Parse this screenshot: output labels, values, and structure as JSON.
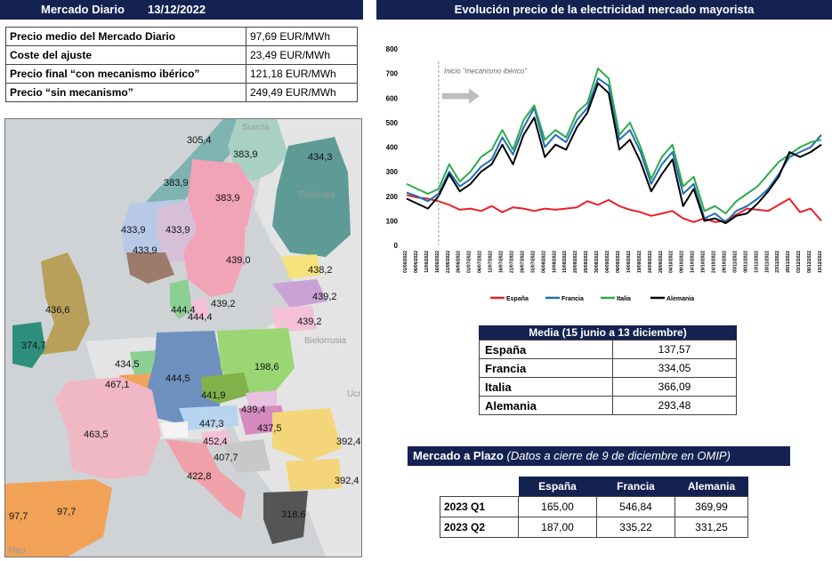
{
  "left_header": {
    "title": "Mercado Diario",
    "date": "13/12/2022"
  },
  "right_header": {
    "title": "Evolución precio de la electricidad mercado mayorista"
  },
  "price_table": [
    {
      "label": "Precio medio del Mercado Diario",
      "value": "97,69 EUR/MWh"
    },
    {
      "label": "Coste del ajuste",
      "value": "23,49 EUR/MWh"
    },
    {
      "label": "Precio final “con mecanismo ibérico”",
      "value": "121,18 EUR/MWh"
    },
    {
      "label": "Precio “sin mecanismo”",
      "value": "249,49 EUR/MWh"
    }
  ],
  "map": {
    "credit": "Map",
    "background_labels": [
      "Suecia",
      "Finlandia",
      "Bielorrusia",
      "Ucr"
    ],
    "colors": {
      "sea": "#cfcfcf",
      "land": "#e3e3e3"
    },
    "price_labels": [
      "305,4",
      "383,9",
      "434,3",
      "383,9",
      "383,9",
      "433,9",
      "433,9",
      "433,9",
      "439,0",
      "438,2",
      "439,2",
      "439,2",
      "436,6",
      "444,4",
      "444,4",
      "439,2",
      "374,7",
      "434,5",
      "198,6",
      "444,5",
      "467,1",
      "441,9",
      "439,4",
      "447,3",
      "437,5",
      "463,5",
      "452,4",
      "392,4",
      "407,7",
      "422,8",
      "392,4",
      "97,7",
      "97,7",
      "318,6"
    ]
  },
  "chart_data": {
    "type": "line",
    "title": "Evolución precio de la electricidad mercado mayorista",
    "ylim": [
      0,
      800
    ],
    "yticks": [
      0,
      100,
      200,
      300,
      400,
      500,
      600,
      700,
      800
    ],
    "annotation": "Inicio \"mecanismo ibérico\"",
    "annotation_date": "16/06/2022",
    "x": [
      "01/06/2022",
      "06/06/2022",
      "11/06/2022",
      "16/06/2022",
      "21/06/2022",
      "26/06/2022",
      "01/07/2022",
      "06/07/2022",
      "11/07/2022",
      "16/07/2022",
      "21/07/2022",
      "26/07/2022",
      "31/07/2022",
      "05/08/2022",
      "10/08/2022",
      "15/08/2022",
      "20/08/2022",
      "25/08/2022",
      "30/08/2022",
      "04/09/2022",
      "09/09/2022",
      "14/09/2022",
      "19/09/2022",
      "24/09/2022",
      "29/09/2022",
      "04/10/2022",
      "09/10/2022",
      "14/10/2022",
      "19/10/2022",
      "24/10/2022",
      "29/10/2022",
      "03/11/2022",
      "08/11/2022",
      "13/11/2022",
      "18/11/2022",
      "23/11/2022",
      "28/11/2022",
      "03/12/2022",
      "08/12/2022",
      "13/12/2022"
    ],
    "series": [
      {
        "name": "España",
        "color": "#e8202a",
        "values": [
          205,
          195,
          190,
          180,
          165,
          145,
          150,
          140,
          160,
          135,
          155,
          150,
          140,
          150,
          145,
          150,
          155,
          180,
          165,
          185,
          160,
          145,
          135,
          120,
          130,
          140,
          110,
          95,
          110,
          95,
          100,
          125,
          150,
          145,
          140,
          165,
          190,
          135,
          150,
          100
        ]
      },
      {
        "name": "Francia",
        "color": "#1f6fb5",
        "values": [
          215,
          200,
          180,
          210,
          300,
          240,
          270,
          320,
          350,
          440,
          370,
          480,
          560,
          400,
          450,
          420,
          510,
          560,
          680,
          650,
          430,
          470,
          380,
          250,
          330,
          380,
          210,
          250,
          110,
          130,
          95,
          140,
          160,
          190,
          230,
          290,
          360,
          380,
          400,
          450
        ]
      },
      {
        "name": "Italia",
        "color": "#2eaa4a",
        "values": [
          250,
          230,
          210,
          230,
          330,
          260,
          300,
          360,
          390,
          470,
          390,
          510,
          570,
          430,
          470,
          440,
          540,
          580,
          720,
          680,
          450,
          500,
          400,
          270,
          360,
          410,
          240,
          280,
          140,
          160,
          130,
          180,
          210,
          240,
          290,
          340,
          370,
          400,
          420,
          430
        ]
      },
      {
        "name": "Alemania",
        "color": "#000000",
        "values": [
          190,
          170,
          150,
          200,
          290,
          220,
          250,
          300,
          330,
          410,
          330,
          450,
          520,
          360,
          410,
          390,
          480,
          540,
          660,
          620,
          390,
          430,
          340,
          220,
          290,
          350,
          160,
          230,
          100,
          110,
          90,
          120,
          130,
          170,
          220,
          280,
          380,
          360,
          380,
          410
        ]
      }
    ]
  },
  "avg_table": {
    "title": "Media (15 junio a 13 diciembre)",
    "rows": [
      {
        "label": "España",
        "value": "137,57"
      },
      {
        "label": "Francia",
        "value": "334,05"
      },
      {
        "label": "Italia",
        "value": "366,09"
      },
      {
        "label": "Alemania",
        "value": "293,48"
      }
    ]
  },
  "futures": {
    "title": "Mercado a Plazo",
    "subtitle": "(Datos a cierre de 9 de diciembre en OMIP)",
    "columns": [
      "España",
      "Francia",
      "Alemania"
    ],
    "rows": [
      {
        "label": "2023 Q1",
        "values": [
          "165,00",
          "546,84",
          "369,99"
        ]
      },
      {
        "label": "2023 Q2",
        "values": [
          "187,00",
          "335,22",
          "331,25"
        ]
      }
    ]
  }
}
